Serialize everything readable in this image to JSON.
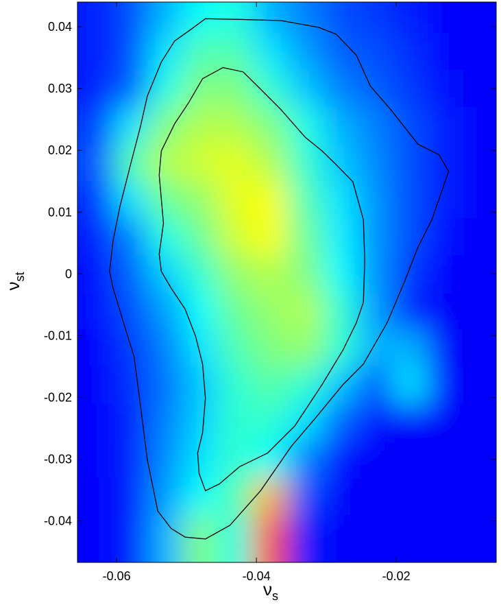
{
  "chart_data": {
    "type": "heatmap",
    "colormap": "jet",
    "xlabel": {
      "base": "ν",
      "subscript": "s"
    },
    "ylabel": {
      "base": "ν",
      "subscript": "st"
    },
    "xlim": [
      -0.0656,
      -0.0057
    ],
    "ylim": [
      -0.0467,
      0.044
    ],
    "xticks": [
      -0.06,
      -0.04,
      -0.02
    ],
    "yticks": [
      0.04,
      0.03,
      0.02,
      0.01,
      0,
      -0.01,
      -0.02,
      -0.03,
      -0.04
    ],
    "x": [
      -0.063,
      -0.058,
      -0.053,
      -0.048,
      -0.043,
      -0.038,
      -0.033,
      -0.028,
      -0.023,
      -0.018,
      -0.013,
      -0.008
    ],
    "y": [
      0.042,
      0.036,
      0.03,
      0.024,
      0.018,
      0.012,
      0.006,
      0,
      -0.006,
      -0.012,
      -0.018,
      -0.024,
      -0.03,
      -0.036,
      -0.042
    ],
    "z": [
      [
        0.15,
        0.2,
        0.3,
        0.38,
        0.4,
        0.3,
        0.25,
        0.2,
        0.18,
        0.15,
        0.13,
        0.12
      ],
      [
        0.15,
        0.2,
        0.35,
        0.45,
        0.45,
        0.35,
        0.28,
        0.22,
        0.2,
        0.17,
        0.13,
        0.12
      ],
      [
        0.15,
        0.22,
        0.4,
        0.5,
        0.5,
        0.42,
        0.32,
        0.25,
        0.22,
        0.18,
        0.14,
        0.12
      ],
      [
        0.18,
        0.35,
        0.5,
        0.55,
        0.55,
        0.5,
        0.4,
        0.3,
        0.25,
        0.2,
        0.15,
        0.12
      ],
      [
        0.2,
        0.45,
        0.55,
        0.58,
        0.6,
        0.55,
        0.42,
        0.32,
        0.26,
        0.2,
        0.15,
        0.12
      ],
      [
        0.17,
        0.35,
        0.48,
        0.52,
        0.6,
        0.62,
        0.45,
        0.35,
        0.27,
        0.2,
        0.15,
        0.12
      ],
      [
        0.15,
        0.25,
        0.4,
        0.48,
        0.58,
        0.62,
        0.48,
        0.36,
        0.27,
        0.2,
        0.14,
        0.12
      ],
      [
        0.14,
        0.22,
        0.33,
        0.42,
        0.52,
        0.55,
        0.5,
        0.38,
        0.27,
        0.18,
        0.13,
        0.12
      ],
      [
        0.14,
        0.2,
        0.28,
        0.38,
        0.48,
        0.52,
        0.55,
        0.42,
        0.28,
        0.16,
        0.12,
        0.12
      ],
      [
        0.13,
        0.18,
        0.25,
        0.35,
        0.45,
        0.5,
        0.52,
        0.42,
        0.3,
        0.3,
        0.12,
        0.12
      ],
      [
        0.13,
        0.17,
        0.24,
        0.32,
        0.42,
        0.46,
        0.42,
        0.32,
        0.2,
        0.35,
        0.12,
        0.12
      ],
      [
        0.13,
        0.16,
        0.25,
        0.33,
        0.42,
        0.42,
        0.35,
        0.22,
        0.14,
        0.12,
        0.12,
        0.12
      ],
      [
        0.13,
        0.16,
        0.26,
        0.35,
        0.42,
        0.38,
        0.25,
        0.14,
        0.12,
        0.12,
        0.12,
        0.12
      ],
      [
        0.12,
        0.15,
        0.28,
        0.38,
        0.45,
        0.7,
        0.2,
        0.12,
        0.12,
        0.12,
        0.12,
        0.12
      ],
      [
        0.12,
        0.15,
        0.3,
        0.5,
        0.4,
        0.8,
        0.15,
        0.12,
        0.12,
        0.12,
        0.12,
        0.12
      ]
    ],
    "contours": [
      {
        "color": "#000000",
        "x": [
          -0.0473,
          -0.0428,
          -0.0365,
          -0.0311,
          -0.0286,
          -0.0257,
          -0.0237,
          -0.0208,
          -0.0169,
          -0.0139,
          -0.0125,
          -0.0149,
          -0.0169,
          -0.0188,
          -0.0213,
          -0.0247,
          -0.0276,
          -0.0316,
          -0.035,
          -0.0394,
          -0.0438,
          -0.0473,
          -0.0502,
          -0.0522,
          -0.0541,
          -0.0556,
          -0.0566,
          -0.0575,
          -0.059,
          -0.0605,
          -0.061,
          -0.0605,
          -0.0595,
          -0.058,
          -0.0566,
          -0.0556,
          -0.0536,
          -0.0517,
          -0.0497
        ],
        "y": [
          0.0413,
          0.0412,
          0.041,
          0.0399,
          0.0388,
          0.0354,
          0.0304,
          0.0266,
          0.021,
          0.0193,
          0.0166,
          0.0088,
          0.0043,
          -0.0012,
          -0.0079,
          -0.0146,
          -0.0179,
          -0.0234,
          -0.0279,
          -0.0351,
          -0.0407,
          -0.0429,
          -0.0426,
          -0.0412,
          -0.0384,
          -0.0301,
          -0.0212,
          -0.0134,
          -0.0079,
          -0.0023,
          0.0004,
          0.0054,
          0.011,
          0.0177,
          0.0238,
          0.0288,
          0.0343,
          0.0377,
          0.0393
        ]
      },
      {
        "color": "#000000",
        "x": [
          -0.0448,
          -0.0419,
          -0.0394,
          -0.0365,
          -0.033,
          -0.0306,
          -0.0286,
          -0.0262,
          -0.0247,
          -0.0245,
          -0.0247,
          -0.0257,
          -0.0276,
          -0.0306,
          -0.0345,
          -0.0384,
          -0.0424,
          -0.0453,
          -0.0473,
          -0.0482,
          -0.0484,
          -0.0477,
          -0.0473,
          -0.0477,
          -0.0487,
          -0.0502,
          -0.0522,
          -0.0536,
          -0.0539,
          -0.0533,
          -0.0536,
          -0.0539,
          -0.0536,
          -0.0517,
          -0.0497,
          -0.0477
        ],
        "y": [
          0.0334,
          0.0327,
          0.0299,
          0.0266,
          0.0221,
          0.0199,
          0.0177,
          0.0149,
          0.0088,
          0.0021,
          -0.0046,
          -0.0079,
          -0.0123,
          -0.0179,
          -0.0246,
          -0.029,
          -0.0312,
          -0.034,
          -0.0351,
          -0.0323,
          -0.029,
          -0.0257,
          -0.0201,
          -0.0146,
          -0.0101,
          -0.0057,
          -0.0023,
          0.0004,
          0.0032,
          0.0082,
          0.0121,
          0.016,
          0.0199,
          0.0243,
          0.0277,
          0.0316
        ]
      }
    ]
  }
}
